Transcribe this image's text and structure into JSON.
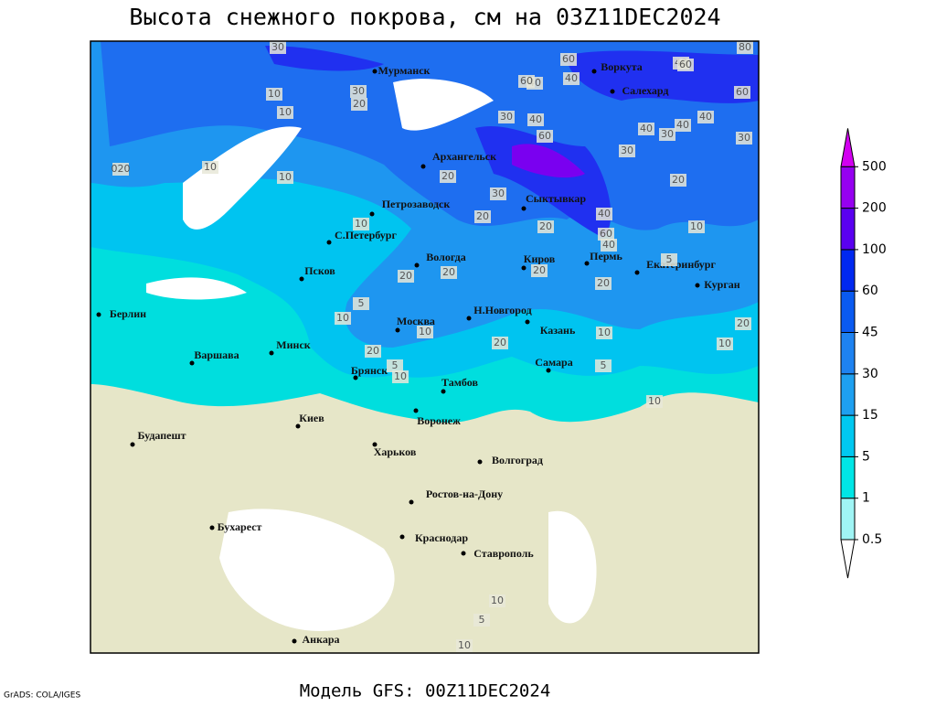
{
  "header": {
    "title": "Высота снежного покрова, см на 03Z11DEC2024"
  },
  "footer": {
    "model": "Модель GFS: 00Z11DEC2024",
    "credit": "GrADS: COLA/IGES"
  },
  "map": {
    "cities": [
      "Мурманск",
      "Воркута",
      "Салехард",
      "Архангельск",
      "Петрозаводск",
      "Сыктывкар",
      "С.Петербург",
      "Вологда",
      "Киров",
      "Пермь",
      "Екатеринбург",
      "Курган",
      "Псков",
      "Берлин",
      "Москва",
      "Н.Новгород",
      "Казань",
      "Минск",
      "Варшава",
      "Самара",
      "Брянск",
      "Тамбов",
      "Киев",
      "Воронеж",
      "Будапешт",
      "Харьков",
      "Волгоград",
      "Ростов-на-Дону",
      "Бухарест",
      "Краснодар",
      "Ставрополь",
      "Анкара"
    ],
    "contour_labels": [
      10,
      10,
      30,
      20,
      40,
      40,
      60,
      40,
      60,
      80,
      60,
      30,
      40,
      60,
      40,
      40,
      30,
      40,
      30,
      30,
      20,
      20,
      10,
      20,
      10,
      30,
      20,
      40,
      60,
      40,
      10,
      20,
      20,
      20,
      5,
      10,
      20,
      5,
      10,
      20,
      10,
      5,
      20,
      10,
      10,
      10,
      5,
      10,
      30,
      60,
      20,
      10,
      5,
      10
    ],
    "contour_labels_text": [
      "020"
    ]
  },
  "legend": {
    "levels": [
      0.5,
      1,
      5,
      15,
      30,
      45,
      60,
      100,
      200,
      500
    ],
    "colors": [
      "#ffffff",
      "#a0f5f5",
      "#00e6e6",
      "#00c8f0",
      "#1ea0f0",
      "#1e82f0",
      "#0a5af0",
      "#0028f0",
      "#5a00f0",
      "#9600f0",
      "#d200f0"
    ]
  }
}
